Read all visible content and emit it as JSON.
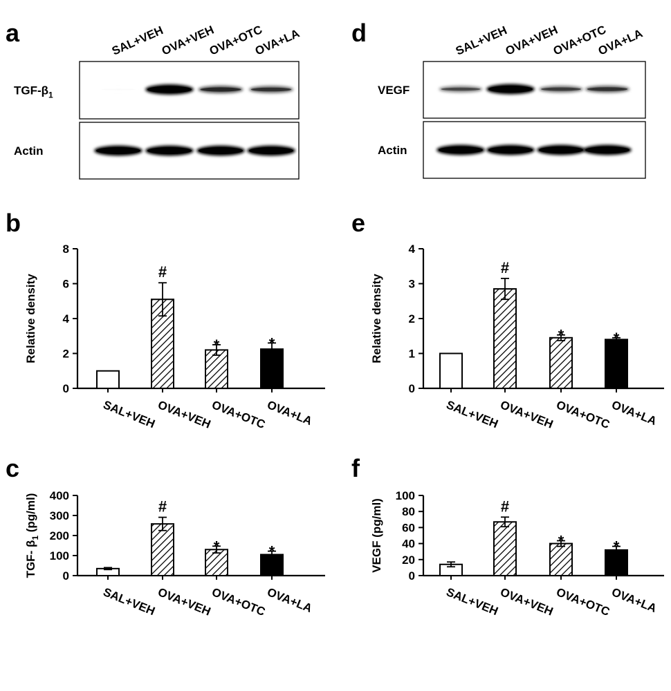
{
  "figure": {
    "lanes": [
      "SAL+VEH",
      "OVA+VEH",
      "OVA+OTC",
      "OVA+LA"
    ],
    "blots": [
      {
        "panel": "a",
        "rows": [
          {
            "label": "TGF-β",
            "subscript": "1",
            "intensities": [
              0.02,
              1.0,
              0.65,
              0.6
            ]
          },
          {
            "label": "Actin",
            "intensities": [
              1.0,
              1.0,
              1.0,
              1.0
            ]
          }
        ]
      },
      {
        "panel": "d",
        "rows": [
          {
            "label": "VEGF",
            "intensities": [
              0.5,
              1.0,
              0.55,
              0.6
            ]
          },
          {
            "label": "Actin",
            "intensities": [
              1.0,
              1.0,
              1.0,
              1.0
            ]
          }
        ]
      }
    ]
  },
  "chart_data": [
    {
      "panel": "b",
      "type": "bar",
      "ylabel": "Relative density",
      "ylabel_sub": "",
      "categories": [
        "SAL+VEH",
        "OVA+VEH",
        "OVA+OTC",
        "OVA+LA"
      ],
      "values": [
        1.0,
        5.1,
        2.2,
        2.25
      ],
      "errors": [
        0,
        0.95,
        0.3,
        0.35
      ],
      "ylim": [
        0,
        8
      ],
      "yticks": [
        "0",
        "2",
        "4",
        "6",
        "8"
      ],
      "fills": [
        "white",
        "hatch",
        "hatch",
        "black"
      ],
      "marks": [
        "",
        "#",
        "*",
        "*"
      ]
    },
    {
      "panel": "c",
      "type": "bar",
      "ylabel": "TGF- β",
      "ylabel_sub": "1",
      "ylabel_suffix": " (pg/ml)",
      "categories": [
        "SAL+VEH",
        "OVA+VEH",
        "OVA+OTC",
        "OVA+LA"
      ],
      "values": [
        35,
        258,
        130,
        105
      ],
      "errors": [
        5,
        33,
        17,
        17
      ],
      "ylim": [
        0,
        400
      ],
      "yticks": [
        "0",
        "100",
        "200",
        "300",
        "400"
      ],
      "fills": [
        "white",
        "hatch",
        "hatch",
        "black"
      ],
      "marks": [
        "",
        "#",
        "*",
        "*"
      ]
    },
    {
      "panel": "e",
      "type": "bar",
      "ylabel": "Relative density",
      "ylabel_sub": "",
      "categories": [
        "SAL+VEH",
        "OVA+VEH",
        "OVA+OTC",
        "OVA+LA"
      ],
      "values": [
        1.0,
        2.85,
        1.45,
        1.4
      ],
      "errors": [
        0,
        0.3,
        0.08,
        0.05
      ],
      "ylim": [
        0,
        4
      ],
      "yticks": [
        "0",
        "1",
        "2",
        "3",
        "4"
      ],
      "fills": [
        "white",
        "hatch",
        "hatch",
        "black"
      ],
      "marks": [
        "",
        "#",
        "*",
        "*"
      ]
    },
    {
      "panel": "f",
      "type": "bar",
      "ylabel": "VEGF (pg/ml)",
      "ylabel_sub": "",
      "categories": [
        "SAL+VEH",
        "OVA+VEH",
        "OVA+OTC",
        "OVA+LA"
      ],
      "values": [
        14,
        67,
        40,
        32
      ],
      "errors": [
        3,
        6,
        3.5,
        4.5
      ],
      "ylim": [
        0,
        100
      ],
      "yticks": [
        "0",
        "20",
        "40",
        "60",
        "80",
        "100"
      ],
      "fills": [
        "white",
        "hatch",
        "hatch",
        "black"
      ],
      "marks": [
        "",
        "#",
        "*",
        "*"
      ]
    }
  ]
}
